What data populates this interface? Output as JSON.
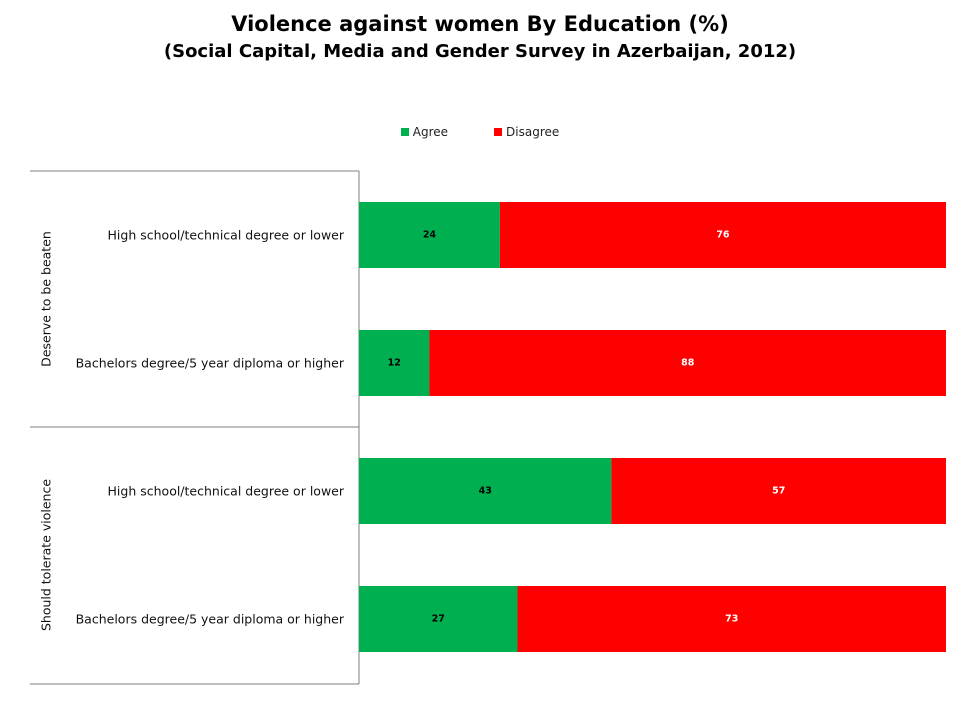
{
  "chart_data": {
    "type": "bar",
    "orientation": "horizontal",
    "stacked": true,
    "title": "Violence against women By Education (%)",
    "subtitle": "(Social Capital, Media and Gender Survey in Azerbaijan, 2012)",
    "legend_position": "top",
    "groups": [
      {
        "label": "Deserve to be beaten",
        "categories": [
          "High school/technical degree or lower",
          "Bachelors degree/5 year diploma or higher"
        ]
      },
      {
        "label": "Should tolerate violence",
        "categories": [
          "High school/technical degree or lower",
          "Bachelors degree/5 year diploma or higher"
        ]
      }
    ],
    "series": [
      {
        "name": "Agree",
        "color": "#00B050",
        "label_color": "#000000",
        "values": [
          24,
          12,
          43,
          27
        ]
      },
      {
        "name": "Disagree",
        "color": "#FF0000",
        "label_color": "#ffffff",
        "values": [
          76,
          88,
          57,
          73
        ]
      }
    ],
    "xlim": [
      0,
      100
    ],
    "grid": false
  }
}
